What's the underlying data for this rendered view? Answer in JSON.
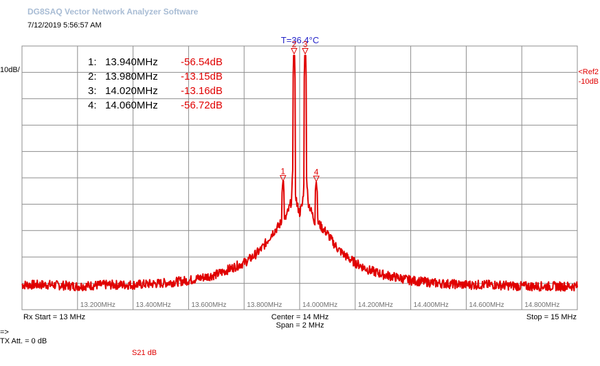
{
  "app_title": "DG8SAQ Vector Network Analyzer Software",
  "datetime": "7/12/2019   5:56:57 AM",
  "temperature": "T=36.4°C",
  "y_scale": "10dB/",
  "ref": {
    "line1": "<Ref2",
    "line2": "-10dB"
  },
  "footer": {
    "rx_start": "Rx Start = 13 MHz",
    "center": "Center = 14 MHz",
    "span": "Span = 2 MHz",
    "stop": "Stop = 15 MHz",
    "arrow": "=>",
    "tx_att": "TX Att.  = 0 dB",
    "trace": "S21  dB"
  },
  "markers": [
    {
      "id": "1:",
      "freq": "13.940MHz",
      "value": "-56.54dB"
    },
    {
      "id": "2:",
      "freq": "13.980MHz",
      "value": "-13.15dB"
    },
    {
      "id": "3:",
      "freq": "14.020MHz",
      "value": "-13.16dB"
    },
    {
      "id": "4:",
      "freq": "14.060MHz",
      "value": "-56.72dB"
    }
  ],
  "colors": {
    "trace": "#e00000",
    "grid": "#8c8c8c",
    "temp": "#2323c8",
    "title": "#a8bcd4"
  },
  "chart_data": {
    "type": "line",
    "xlim": [
      13.0,
      15.0
    ],
    "ylim": [
      -100,
      -10
    ],
    "grid": true,
    "x_tick_labels": [
      "13.200MHz",
      "13.400MHz",
      "13.600MHz",
      "13.800MHz",
      "14.000MHz",
      "14.200MHz",
      "14.400MHz",
      "14.600MHz",
      "14.800MHz"
    ],
    "x_ticks": [
      13.2,
      13.4,
      13.6,
      13.8,
      14.0,
      14.2,
      14.4,
      14.6,
      14.8
    ],
    "series": [
      {
        "x": [
          13.0,
          13.1,
          13.2,
          13.3,
          13.4,
          13.5,
          13.55,
          13.6,
          13.65,
          13.7,
          13.75,
          13.8,
          13.83,
          13.86,
          13.88,
          13.9,
          13.92,
          13.935,
          13.937,
          13.94,
          13.943,
          13.945,
          13.96,
          13.97,
          13.975,
          13.977,
          13.98,
          13.983,
          13.985,
          13.99,
          14.0,
          14.01,
          14.015,
          14.017,
          14.02,
          14.023,
          14.025,
          14.03,
          14.04,
          14.055,
          14.057,
          14.06,
          14.063,
          14.065,
          14.08,
          14.1,
          14.12,
          14.14,
          14.17,
          14.2,
          14.25,
          14.3,
          14.35,
          14.4,
          14.45,
          14.5,
          14.6,
          14.7,
          14.8,
          14.9,
          15.0
        ],
        "y": [
          -91.5,
          -91.5,
          -92,
          -91.5,
          -91.5,
          -91,
          -90.5,
          -90,
          -89,
          -88,
          -86,
          -84,
          -82,
          -79.5,
          -77,
          -74,
          -72,
          -70,
          -56.5,
          -56.5,
          -56.5,
          -70,
          -66,
          -63,
          -54,
          -13.2,
          -13.2,
          -13.2,
          -60,
          -64,
          -67,
          -64,
          -58,
          -13.2,
          -13.2,
          -13.2,
          -54,
          -63,
          -66,
          -70,
          -56.7,
          -56.7,
          -56.7,
          -70,
          -72,
          -74,
          -77,
          -79.5,
          -82,
          -84,
          -86.5,
          -88,
          -89,
          -90,
          -90.5,
          -91,
          -91.5,
          -91.5,
          -92,
          -92,
          -92
        ]
      }
    ],
    "markers": [
      {
        "n": "1",
        "x": 13.94,
        "y": -56.54
      },
      {
        "n": "2",
        "x": 13.98,
        "y": -13.15
      },
      {
        "n": "3",
        "x": 14.02,
        "y": -13.16
      },
      {
        "n": "4",
        "x": 14.06,
        "y": -56.72
      }
    ]
  }
}
